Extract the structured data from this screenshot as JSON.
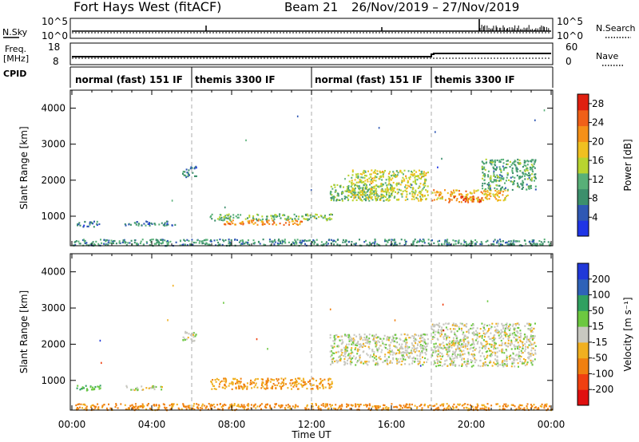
{
  "header": {
    "title": "Fort Hays West (fitACF)",
    "beam": "Beam 21",
    "dates": "26/Nov/2019 – 27/Nov/2019"
  },
  "strips": {
    "nsky_label": "N.Sky",
    "nsky_top": "10^5",
    "nsky_bottom": "10^0",
    "nsearch_label": "N.Search",
    "nsearch_top": "10^5",
    "nsearch_bottom": "10^0",
    "freq_label_1": "Freq.",
    "freq_label_2": "[MHz]",
    "freq_top": "18",
    "freq_bottom": "8",
    "nave_label": "Nave",
    "nave_top": "60",
    "nave_bottom": "0",
    "cpid_label": "CPID",
    "cpid_segments": [
      {
        "label": "normal (fast) 151 IF",
        "start_h": 0,
        "end_h": 6
      },
      {
        "label": "themis 3300 IF",
        "start_h": 6,
        "end_h": 12
      },
      {
        "label": "normal (fast) 151 IF",
        "start_h": 12,
        "end_h": 18
      },
      {
        "label": "themis 3300 IF",
        "start_h": 18,
        "end_h": 24
      }
    ]
  },
  "chart_data": [
    {
      "type": "heatmap",
      "panel": "power",
      "ylabel": "Slant Range [km]",
      "xlabel": "Time UT",
      "x_ticks": [
        "00:00",
        "04:00",
        "08:00",
        "12:00",
        "16:00",
        "20:00",
        "00:00"
      ],
      "xlim_hours": [
        0,
        24
      ],
      "y_ticks": [
        1000,
        2000,
        3000,
        4000
      ],
      "ylim_km": [
        180,
        4500
      ],
      "colorbar": {
        "label": "Power [dB]",
        "ticks": [
          4,
          8,
          12,
          16,
          20,
          24,
          28
        ],
        "range": [
          0,
          30
        ],
        "colors": [
          "#1f35e6",
          "#2f58b4",
          "#3c8f6c",
          "#58b078",
          "#b8d430",
          "#f0c020",
          "#f59018",
          "#f06018",
          "#e02010"
        ]
      },
      "dashed_separators_hours": [
        6,
        12,
        18
      ],
      "echo_regions": [
        {
          "t0": 0.0,
          "t1": 24.0,
          "r0": 200,
          "r1": 380,
          "level": 8
        },
        {
          "t0": 0.2,
          "t1": 1.4,
          "r0": 720,
          "r1": 880,
          "level": 6
        },
        {
          "t0": 2.6,
          "t1": 5.2,
          "r0": 750,
          "r1": 880,
          "level": 6
        },
        {
          "t0": 5.5,
          "t1": 6.2,
          "r0": 2100,
          "r1": 2400,
          "level": 6
        },
        {
          "t0": 6.9,
          "t1": 13.0,
          "r0": 900,
          "r1": 1080,
          "level": 12
        },
        {
          "t0": 7.5,
          "t1": 11.5,
          "r0": 780,
          "r1": 920,
          "level": 22
        },
        {
          "t0": 12.9,
          "t1": 16.0,
          "r0": 1450,
          "r1": 1900,
          "level": 12
        },
        {
          "t0": 13.8,
          "t1": 17.8,
          "r0": 1450,
          "r1": 2300,
          "level": 16
        },
        {
          "t0": 18.0,
          "t1": 21.8,
          "r0": 1450,
          "r1": 1750,
          "level": 20
        },
        {
          "t0": 18.8,
          "t1": 20.5,
          "r0": 1400,
          "r1": 1580,
          "level": 26
        },
        {
          "t0": 20.5,
          "t1": 23.2,
          "r0": 1750,
          "r1": 2600,
          "level": 10
        }
      ]
    },
    {
      "type": "heatmap",
      "panel": "velocity",
      "ylabel": "Slant Range [km]",
      "xlabel": "Time UT",
      "x_ticks": [
        "00:00",
        "04:00",
        "08:00",
        "12:00",
        "16:00",
        "20:00",
        "00:00"
      ],
      "xlim_hours": [
        0,
        24
      ],
      "y_ticks": [
        1000,
        2000,
        3000,
        4000
      ],
      "ylim_km": [
        180,
        4500
      ],
      "colorbar": {
        "label": "Velocity [m s⁻¹]",
        "ticks": [
          200,
          100,
          50,
          15,
          -15,
          -50,
          -100,
          -200
        ],
        "colors": [
          "#2038d8",
          "#2e62b8",
          "#30a060",
          "#6cc840",
          "#c8c8c0",
          "#f0b020",
          "#f08010",
          "#f04010",
          "#e01010"
        ]
      },
      "dashed_separators_hours": [
        6,
        12,
        18
      ],
      "echo_regions": [
        {
          "t0": 0.0,
          "t1": 24.0,
          "r0": 200,
          "r1": 380,
          "vel": -60
        },
        {
          "t0": 0.2,
          "t1": 1.4,
          "r0": 720,
          "r1": 880,
          "vel": 40
        },
        {
          "t0": 2.6,
          "t1": 4.5,
          "r0": 750,
          "r1": 880,
          "vel": 0
        },
        {
          "t0": 5.5,
          "t1": 6.2,
          "r0": 2100,
          "r1": 2400,
          "vel": 0
        },
        {
          "t0": 6.9,
          "t1": 13.0,
          "r0": 780,
          "r1": 1080,
          "vel": -45
        },
        {
          "t0": 12.9,
          "t1": 17.8,
          "r0": 1450,
          "r1": 2300,
          "vel": 0
        },
        {
          "t0": 18.0,
          "t1": 23.2,
          "r0": 1400,
          "r1": 2600,
          "vel": 0
        }
      ]
    }
  ]
}
